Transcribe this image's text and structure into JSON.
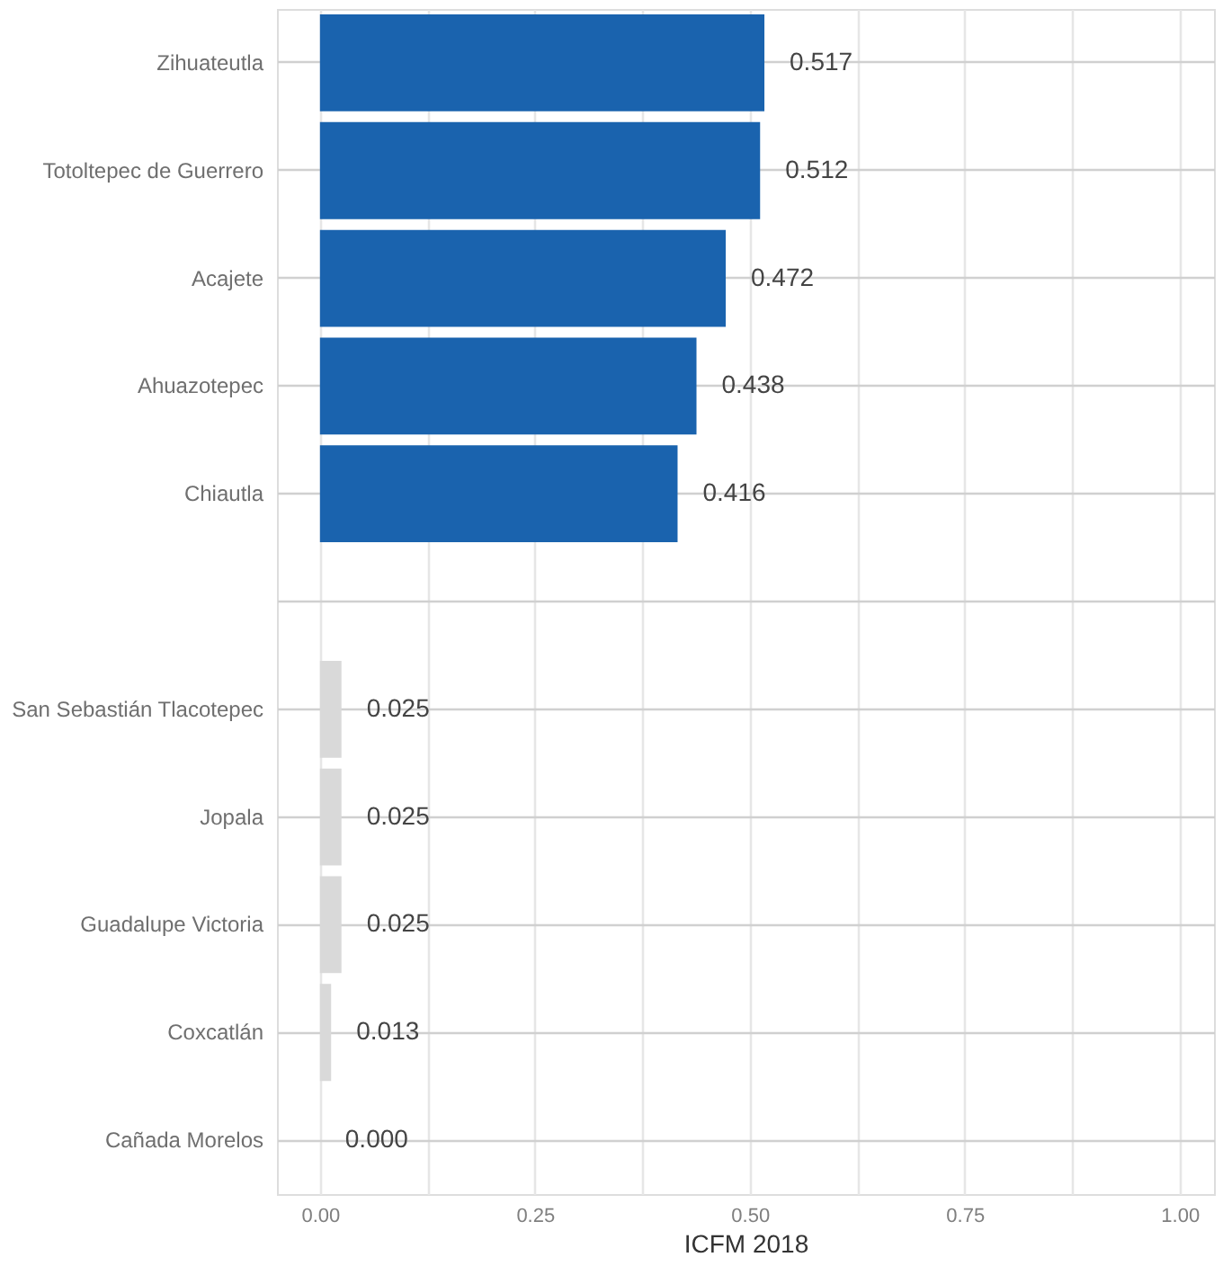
{
  "chart_data": {
    "type": "bar",
    "orientation": "horizontal",
    "xlabel": "ICFM 2018",
    "categories": [
      "Zihuateutla",
      "Totoltepec de Guerrero",
      "Acajete",
      "Ahuazotepec",
      "Chiautla",
      null,
      "San Sebastián Tlacotepec",
      "Jopala",
      "Guadalupe Victoria",
      "Coxcatlán",
      "Cañada Morelos"
    ],
    "values": [
      0.517,
      0.512,
      0.472,
      0.438,
      0.416,
      null,
      0.025,
      0.025,
      0.025,
      0.013,
      0.0
    ],
    "value_labels": [
      "0.517",
      "0.512",
      "0.472",
      "0.438",
      "0.416",
      null,
      "0.025",
      "0.025",
      "0.025",
      "0.013",
      "0.000"
    ],
    "colors": [
      "#1a63ae",
      "#1a63ae",
      "#1a63ae",
      "#1a63ae",
      "#1a63ae",
      null,
      "#d9d9d9",
      "#d9d9d9",
      "#d9d9d9",
      "#d9d9d9",
      "#d9d9d9"
    ],
    "xlim": [
      -0.05,
      1.04
    ],
    "xticks": [
      {
        "value": 0,
        "label": "0.00"
      },
      {
        "value": 0.125,
        "label": null
      },
      {
        "value": 0.25,
        "label": "0.25"
      },
      {
        "value": 0.375,
        "label": null
      },
      {
        "value": 0.5,
        "label": "0.50"
      },
      {
        "value": 0.625,
        "label": null
      },
      {
        "value": 0.75,
        "label": "0.75"
      },
      {
        "value": 0.875,
        "label": null
      },
      {
        "value": 1,
        "label": "1.00"
      }
    ],
    "grid": true
  }
}
